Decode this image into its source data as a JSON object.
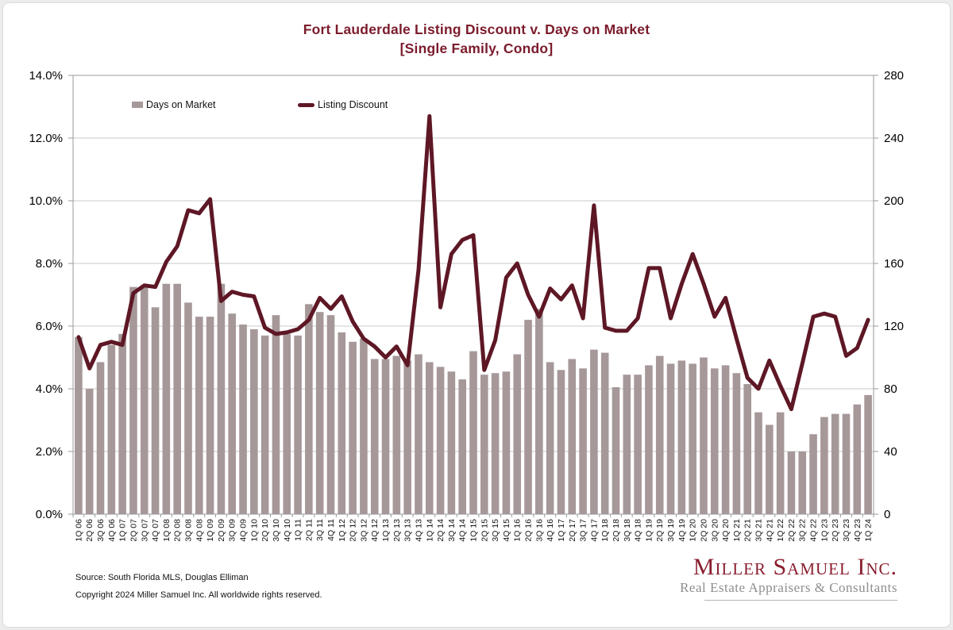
{
  "title": {
    "line1": "Fort Lauderdale Listing Discount v. Days on Market",
    "line2": "[Single Family, Condo]"
  },
  "legend": [
    {
      "label": "Days on Market",
      "swatch_color": "#a69899"
    },
    {
      "label": "Listing Discount",
      "swatch_color": "#5e1725"
    }
  ],
  "footer": {
    "source": "Source: South Florida MLS, Douglas Elliman",
    "copyright": "Copyright 2024 Miller Samuel Inc.  All worldwide rights reserved."
  },
  "logo": {
    "name": "Miller Samuel Inc.",
    "tagline": "Real Estate Appraisers & Consultants"
  },
  "colors": {
    "accent_maroon": "#7b1c2c",
    "line_maroon": "#5e1725",
    "bar_taupe": "#a69899",
    "gridline": "#c9c9c9",
    "axis": "#9a9a9a"
  },
  "chart_data": {
    "type": "bar+line",
    "title": "Fort Lauderdale Listing Discount v. Days on Market [Single Family, Condo]",
    "grid": true,
    "legend_position": "top-inside",
    "categories": [
      "1Q 06",
      "2Q 06",
      "3Q 06",
      "4Q 06",
      "1Q 07",
      "2Q 07",
      "3Q 07",
      "4Q 07",
      "1Q 08",
      "2Q 08",
      "3Q 08",
      "4Q 08",
      "1Q 09",
      "2Q 09",
      "3Q 09",
      "4Q 09",
      "1Q 10",
      "2Q 10",
      "3Q 10",
      "4Q 10",
      "1Q 11",
      "2Q 11",
      "3Q 11",
      "4Q 11",
      "1Q 12",
      "2Q 12",
      "3Q 12",
      "4Q 12",
      "1Q 13",
      "2Q 13",
      "3Q 13",
      "4Q 13",
      "1Q 14",
      "2Q 14",
      "3Q 14",
      "4Q 14",
      "1Q 15",
      "2Q 15",
      "3Q 15",
      "4Q 15",
      "1Q 16",
      "2Q 16",
      "3Q 16",
      "4Q 16",
      "1Q 17",
      "2Q 17",
      "3Q 17",
      "4Q 17",
      "1Q 18",
      "2Q 18",
      "3Q 18",
      "4Q 18",
      "1Q 19",
      "2Q 19",
      "3Q 19",
      "4Q 19",
      "1Q 20",
      "2Q 20",
      "3Q 20",
      "4Q 20",
      "1Q 21",
      "2Q 21",
      "3Q 21",
      "4Q 21",
      "1Q 22",
      "2Q 22",
      "3Q 22",
      "4Q 22",
      "1Q 23",
      "2Q 23",
      "3Q 23",
      "4Q 23",
      "1Q 24"
    ],
    "series": [
      {
        "name": "Days on Market",
        "type": "bar",
        "axis": "right",
        "unit": "days",
        "color": "#a69899",
        "values": [
          113,
          80,
          97,
          108,
          115,
          145,
          146,
          132,
          147,
          147,
          135,
          126,
          126,
          147,
          128,
          121,
          118,
          114,
          127,
          115,
          114,
          134,
          129,
          127,
          116,
          110,
          112,
          99,
          99,
          101,
          98,
          102,
          97,
          94,
          91,
          86,
          104,
          89,
          90,
          91,
          102,
          124,
          131,
          97,
          92,
          99,
          93,
          105,
          103,
          81,
          89,
          89,
          95,
          101,
          96,
          98,
          96,
          100,
          93,
          95,
          90,
          83,
          65,
          57,
          65,
          40,
          40,
          51,
          62,
          64,
          64,
          70,
          76
        ]
      },
      {
        "name": "Listing Discount",
        "type": "line",
        "axis": "left",
        "unit": "%",
        "color": "#5e1725",
        "values": [
          5.65,
          4.65,
          5.4,
          5.5,
          5.4,
          7.05,
          7.3,
          7.25,
          8.05,
          8.55,
          9.7,
          9.6,
          10.05,
          6.8,
          7.1,
          7.0,
          6.95,
          5.95,
          5.75,
          5.8,
          5.9,
          6.2,
          6.9,
          6.55,
          6.95,
          6.15,
          5.6,
          5.35,
          5.0,
          5.35,
          4.75,
          7.8,
          12.7,
          6.6,
          8.3,
          8.75,
          8.9,
          4.6,
          5.55,
          7.55,
          8.0,
          7.0,
          6.3,
          7.2,
          6.85,
          7.3,
          6.25,
          9.85,
          5.95,
          5.85,
          5.85,
          6.25,
          7.85,
          7.85,
          6.25,
          7.35,
          8.3,
          7.35,
          6.3,
          6.9,
          5.6,
          4.35,
          4.0,
          4.9,
          4.1,
          3.35,
          4.8,
          6.3,
          6.4,
          6.3,
          5.05,
          5.3,
          6.2
        ]
      }
    ],
    "left_axis": {
      "min": 0,
      "max": 14,
      "step": 2,
      "unit": "%",
      "labels": [
        "14.0%",
        "12.0%",
        "10.0%",
        "8.0%",
        "6.0%",
        "4.0%",
        "2.0%",
        "0.0%"
      ]
    },
    "right_axis": {
      "min": 0,
      "max": 280,
      "step": 40,
      "unit": "days",
      "labels": [
        "280",
        "240",
        "200",
        "160",
        "120",
        "80",
        "40",
        "0"
      ]
    }
  }
}
